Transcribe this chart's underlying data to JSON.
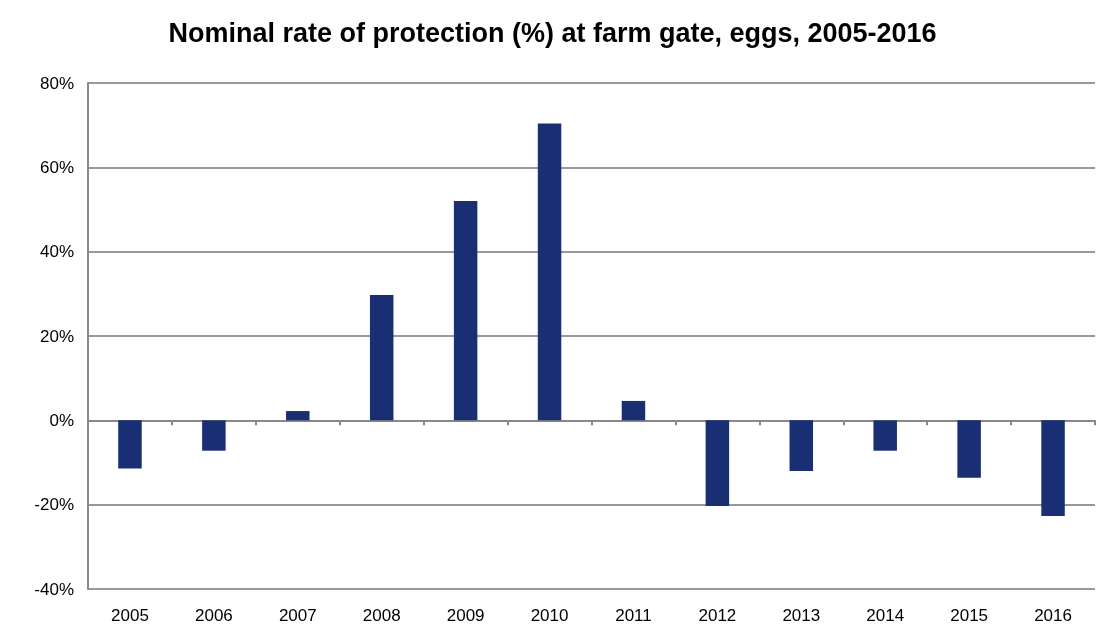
{
  "chart_data": {
    "type": "bar",
    "title": "Nominal rate of protection (%) at farm gate, eggs, 2005-2016",
    "categories": [
      "2005",
      "2006",
      "2007",
      "2008",
      "2009",
      "2010",
      "2011",
      "2012",
      "2013",
      "2014",
      "2015",
      "2016"
    ],
    "values": [
      -11.4,
      -7.2,
      2.2,
      29.7,
      52,
      70.4,
      4.6,
      -20.3,
      -12,
      -7.2,
      -13.6,
      -22.7
    ],
    "color": "#1a2f73",
    "ylim": [
      -40,
      80
    ],
    "yticks": [
      {
        "value": -40,
        "label": "-40%"
      },
      {
        "value": -20,
        "label": "-20%"
      },
      {
        "value": 0,
        "label": "0%"
      },
      {
        "value": 20,
        "label": "20%"
      },
      {
        "value": 40,
        "label": "40%"
      },
      {
        "value": 60,
        "label": "60%"
      },
      {
        "value": 80,
        "label": "80%"
      }
    ],
    "grid": "y"
  }
}
